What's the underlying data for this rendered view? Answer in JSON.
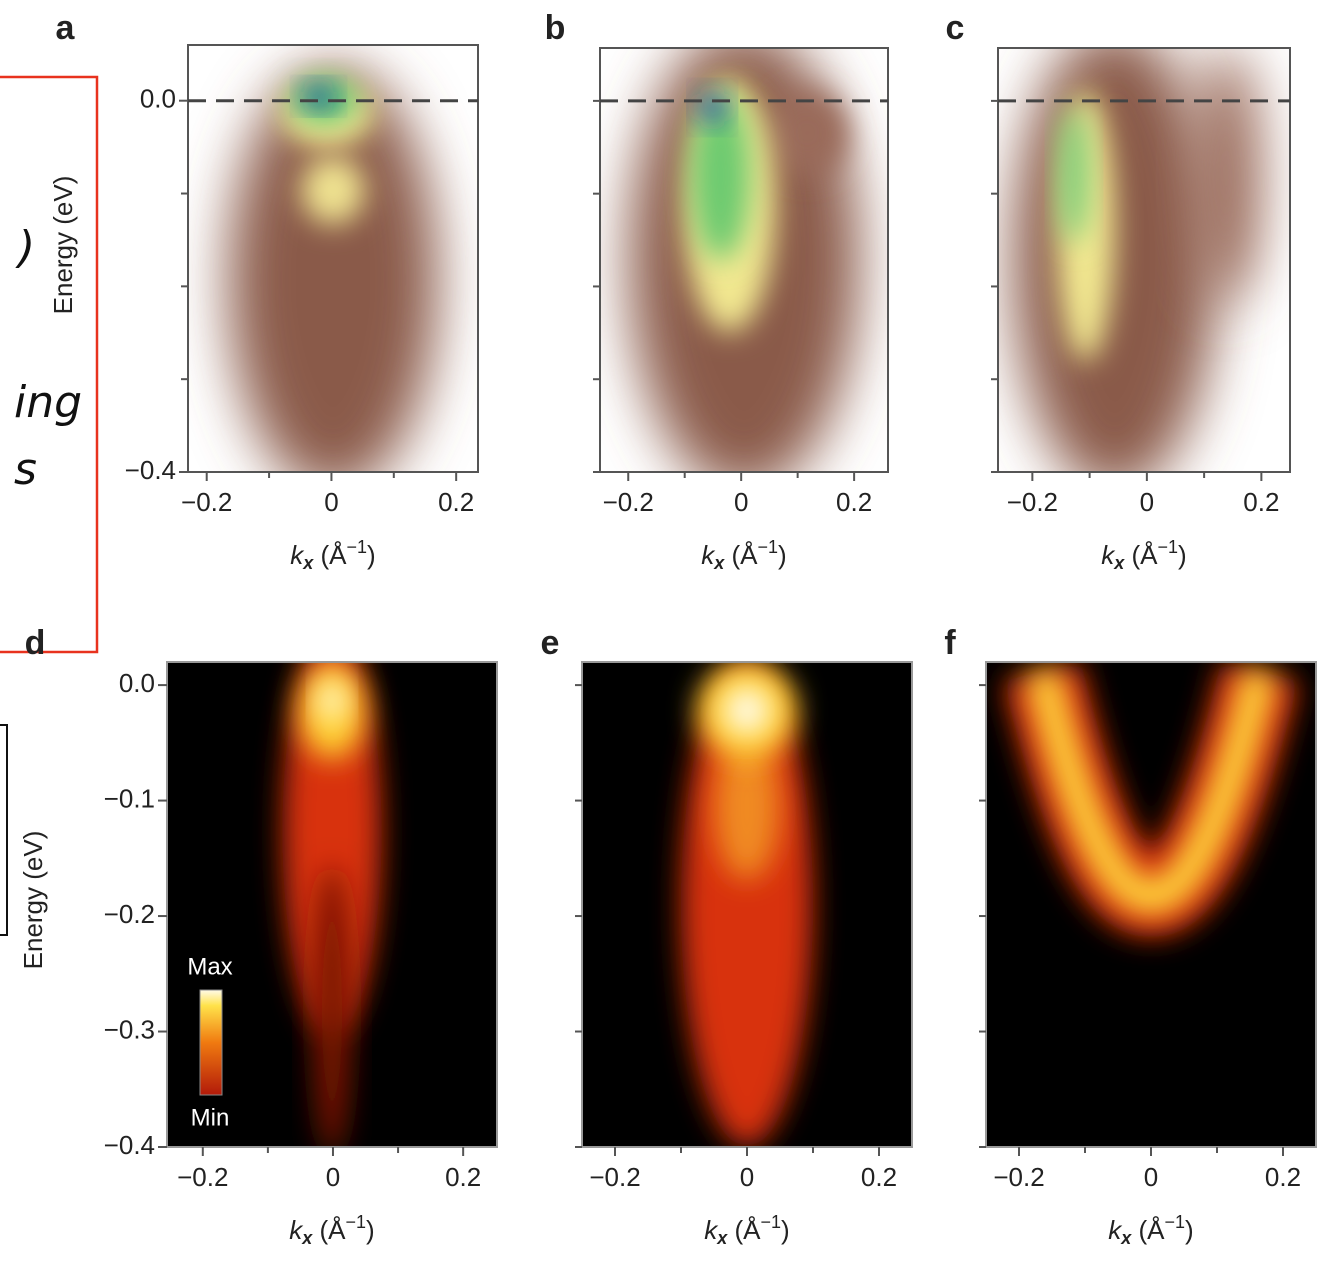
{
  "fragments": [
    ")",
    "ing",
    "s"
  ],
  "chart_data": [
    {
      "type": "heatmap",
      "panel": "a",
      "ylabel": "Energy (eV)",
      "xlabel": [
        "k",
        "x",
        " (Å",
        "−1",
        ")"
      ],
      "xlim": [
        -0.23,
        0.235
      ],
      "xticks": [
        {
          "value": -0.2,
          "label": "−0.2"
        },
        0,
        0.2
      ],
      "xminor": [
        -0.1,
        0.1
      ],
      "ylim": [
        -0.4,
        0.06
      ],
      "yticks": [
        {
          "value": 0,
          "label": "0.0"
        },
        {
          "value": -0.4,
          "label": "−0.4"
        }
      ],
      "yminor": [
        -0.1,
        -0.2,
        -0.3
      ],
      "dashed_line": 0
    },
    {
      "type": "heatmap",
      "panel": "b",
      "xlabel": [
        "k",
        "x",
        " (Å",
        "−1",
        ")"
      ],
      "xlim": [
        -0.25,
        0.26
      ],
      "xticks": [
        {
          "value": -0.2,
          "label": "−0.2"
        },
        0,
        0.2
      ],
      "xminor": [
        -0.1,
        0.1
      ],
      "ylim": [
        -0.4,
        0.057
      ],
      "yticks": [],
      "yminor": [
        0,
        -0.1,
        -0.2,
        -0.3,
        -0.4
      ],
      "dashed_line": 0
    },
    {
      "type": "heatmap",
      "panel": "c",
      "xlabel": [
        "k",
        "x",
        " (Å",
        "−1",
        ")"
      ],
      "xlim": [
        -0.26,
        0.25
      ],
      "xticks": [
        {
          "value": -0.2,
          "label": "−0.2"
        },
        0,
        0.2
      ],
      "xminor": [
        -0.1,
        0.1
      ],
      "ylim": [
        -0.4,
        0.057
      ],
      "yticks": [],
      "yminor": [
        0,
        -0.1,
        -0.2,
        -0.3,
        -0.4
      ],
      "dashed_line": 0
    },
    {
      "type": "heatmap",
      "panel": "d",
      "ylabel": "Energy (eV)",
      "xlabel": [
        "k",
        "x",
        " (Å",
        "−1",
        ")"
      ],
      "xlim": [
        -0.255,
        0.252
      ],
      "xticks": [
        {
          "value": -0.2,
          "label": "−0.2"
        },
        0,
        0.2
      ],
      "xminor": [
        -0.1,
        0.1
      ],
      "ylim": [
        -0.4,
        0.02
      ],
      "yticks": [
        {
          "value": 0,
          "label": "0.0"
        },
        {
          "value": -0.1,
          "label": "−0.1"
        },
        {
          "value": -0.2,
          "label": "−0.2"
        },
        {
          "value": -0.3,
          "label": "−0.3"
        },
        {
          "value": -0.4,
          "label": "−0.4"
        }
      ],
      "yminor": [],
      "colorbar": [
        "Max",
        "Min"
      ]
    },
    {
      "type": "heatmap",
      "panel": "e",
      "xlabel": [
        "k",
        "x",
        " (Å",
        "−1",
        ")"
      ],
      "xlim": [
        -0.25,
        0.25
      ],
      "xticks": [
        {
          "value": -0.2,
          "label": "−0.2"
        },
        0,
        0.2
      ],
      "xminor": [
        -0.1,
        0.1
      ],
      "ylim": [
        -0.4,
        0.02
      ],
      "yticks": [],
      "yminor": [
        0,
        -0.1,
        -0.2,
        -0.3,
        -0.4
      ]
    },
    {
      "type": "heatmap",
      "panel": "f",
      "xlabel": [
        "k",
        "x",
        " (Å",
        "−1",
        ")"
      ],
      "xlim": [
        -0.25,
        0.25
      ],
      "xticks": [
        {
          "value": -0.2,
          "label": "−0.2"
        },
        0,
        0.2
      ],
      "xminor": [
        -0.1,
        0.1
      ],
      "ylim": [
        -0.4,
        0.02
      ],
      "yticks": [],
      "yminor": [
        0,
        -0.1,
        -0.2,
        -0.3,
        -0.4
      ]
    }
  ]
}
